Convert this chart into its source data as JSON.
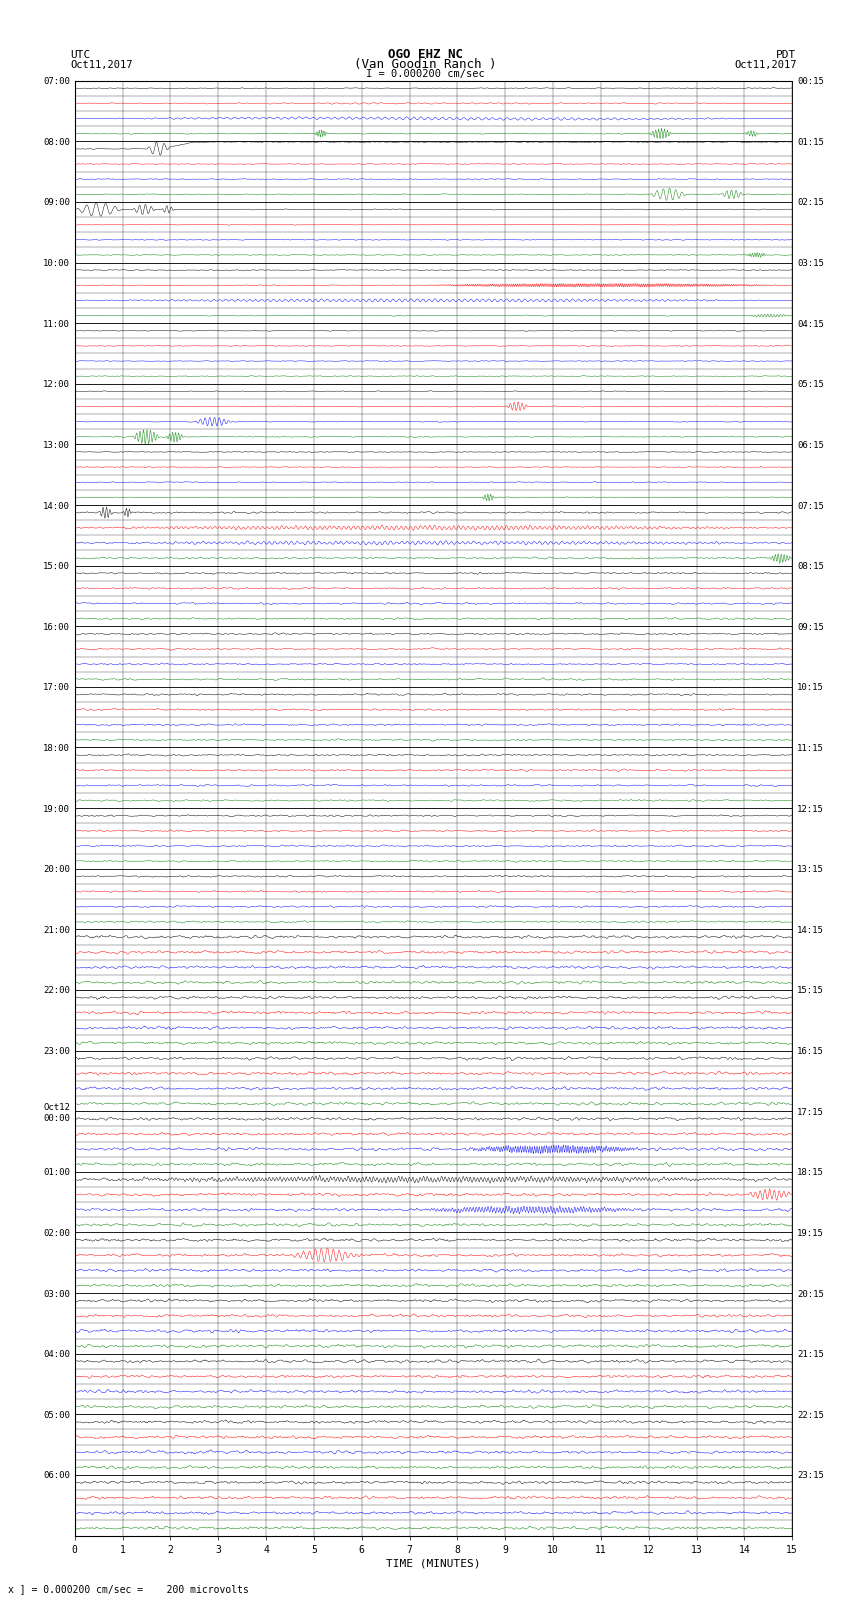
{
  "title_line1": "OGO EHZ NC",
  "title_line2": "(Van Goodin Ranch )",
  "title_line3": "I = 0.000200 cm/sec",
  "left_label_top": "UTC",
  "left_label_date": "Oct11,2017",
  "right_label_top": "PDT",
  "right_label_date": "Oct11,2017",
  "xlabel": "TIME (MINUTES)",
  "bottom_note": "x ] = 0.000200 cm/sec =    200 microvolts",
  "utc_hour_labels": [
    "07:00",
    "08:00",
    "09:00",
    "10:00",
    "11:00",
    "12:00",
    "13:00",
    "14:00",
    "15:00",
    "16:00",
    "17:00",
    "18:00",
    "19:00",
    "20:00",
    "21:00",
    "22:00",
    "23:00",
    "Oct12\n00:00",
    "01:00",
    "02:00",
    "03:00",
    "04:00",
    "05:00",
    "06:00"
  ],
  "pdt_hour_labels": [
    "00:15",
    "01:15",
    "02:15",
    "03:15",
    "04:15",
    "05:15",
    "06:15",
    "07:15",
    "08:15",
    "09:15",
    "10:15",
    "11:15",
    "12:15",
    "13:15",
    "14:15",
    "15:15",
    "16:15",
    "17:15",
    "18:15",
    "19:15",
    "20:15",
    "21:15",
    "22:15",
    "23:15"
  ],
  "n_hours": 24,
  "n_traces_per_hour": 4,
  "n_minutes": 15,
  "background_color": "#ffffff",
  "trace_colors": [
    "#000000",
    "#ff0000",
    "#0000ff",
    "#008000"
  ],
  "fig_width": 8.5,
  "fig_height": 16.13
}
